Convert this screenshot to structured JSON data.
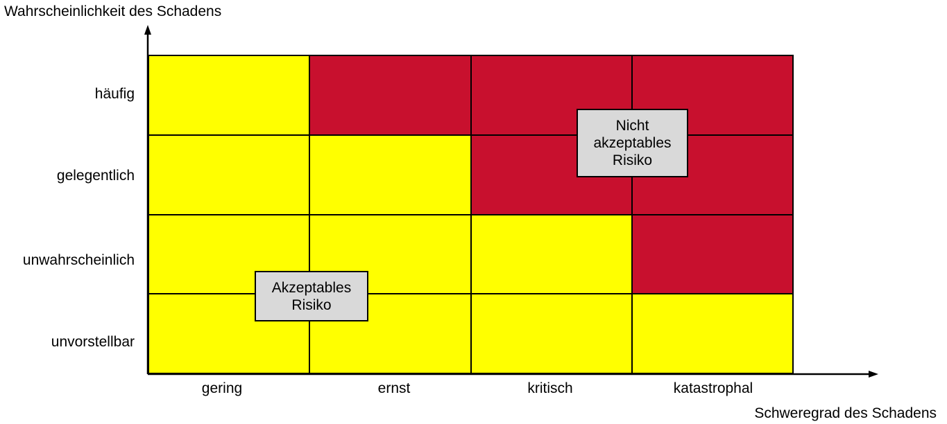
{
  "axes": {
    "y_title": "Wahrscheinlichkeit des Schadens",
    "x_title": "Schweregrad des Schadens"
  },
  "rows": [
    {
      "label": "häufig"
    },
    {
      "label": "gelegentlich"
    },
    {
      "label": "unwahrscheinlich"
    },
    {
      "label": "unvorstellbar"
    }
  ],
  "columns": [
    {
      "label": "gering"
    },
    {
      "label": "ernst"
    },
    {
      "label": "kritisch"
    },
    {
      "label": "katastrophal"
    }
  ],
  "matrix": [
    [
      "acceptable",
      "unacceptable",
      "unacceptable",
      "unacceptable"
    ],
    [
      "acceptable",
      "acceptable",
      "unacceptable",
      "unacceptable"
    ],
    [
      "acceptable",
      "acceptable",
      "acceptable",
      "unacceptable"
    ],
    [
      "acceptable",
      "acceptable",
      "acceptable",
      "acceptable"
    ]
  ],
  "colors": {
    "acceptable": "#ffff00",
    "unacceptable": "#c8102e",
    "callout_fill": "#d9d9d9"
  },
  "callouts": {
    "unacceptable": [
      "Nicht",
      "akzeptables",
      "Risiko"
    ],
    "acceptable": [
      "Akzeptables",
      "Risiko"
    ]
  }
}
